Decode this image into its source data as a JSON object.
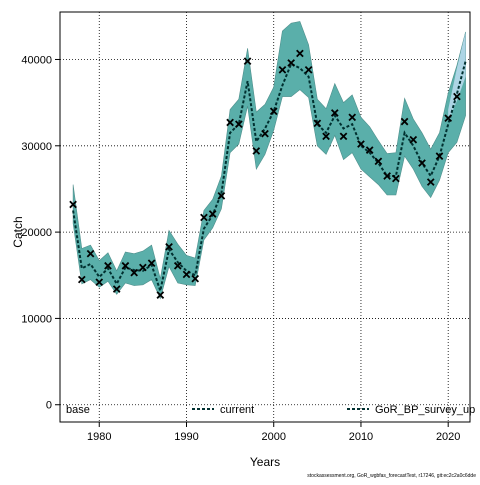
{
  "chart_data": {
    "type": "line",
    "xlabel": "Years",
    "ylabel": "Catch",
    "xlim": [
      1975.5,
      2022.5
    ],
    "ylim": [
      -2000,
      45500
    ],
    "x_ticks": [
      1980,
      1990,
      2000,
      2010,
      2020
    ],
    "y_ticks": [
      0,
      10000,
      20000,
      30000,
      40000
    ],
    "grid": true,
    "legend_placement": "bottom",
    "legend": {
      "left_label": "base",
      "mid_label": "current",
      "right_label": "GoR_BP_survey_up"
    },
    "footer": "stockassessment.org, GoR_wgbfas_forecastTest, r17246, git:ec2c2a0c6dde",
    "colors": {
      "band_main": "#5aafaa",
      "band_main_edge": "#4f8f8c",
      "band_extra": "#bcdcf0",
      "line": "#003030",
      "observed_marker": "#000000",
      "grid": "#000000"
    },
    "series": [
      {
        "name": "current",
        "x": [
          1977,
          1978,
          1979,
          1980,
          1981,
          1982,
          1983,
          1984,
          1985,
          1986,
          1987,
          1988,
          1989,
          1990,
          1991,
          1992,
          1993,
          1994,
          1995,
          1996,
          1997,
          1998,
          1999,
          2000,
          2001,
          2002,
          2003,
          2004,
          2005,
          2006,
          2007,
          2008,
          2009,
          2010,
          2011,
          2012,
          2013,
          2014,
          2015,
          2016,
          2017,
          2018,
          2019,
          2020,
          2021,
          2022
        ],
        "values": [
          22500,
          15800,
          16300,
          14800,
          15800,
          14000,
          15900,
          15600,
          15500,
          16200,
          13200,
          18000,
          16500,
          15500,
          15000,
          20400,
          22000,
          24500,
          31500,
          32500,
          37500,
          30500,
          32000,
          34000,
          37000,
          39500,
          39000,
          38000,
          32500,
          31500,
          33500,
          32000,
          32500,
          30000,
          29200,
          28000,
          26500,
          26500,
          31500,
          30000,
          28000,
          26500,
          28800,
          32500,
          36000,
          39800
        ],
        "lower": [
          21000,
          14000,
          14500,
          13600,
          14300,
          12800,
          14100,
          13800,
          13900,
          14500,
          12300,
          16000,
          14100,
          13900,
          13800,
          19100,
          20500,
          22700,
          29200,
          30200,
          34600,
          27300,
          29000,
          31800,
          35700,
          35700,
          36500,
          35600,
          30000,
          29000,
          31200,
          28400,
          29200,
          27300,
          26400,
          25500,
          24300,
          24300,
          28800,
          27300,
          25300,
          24000,
          26000,
          29200,
          30400,
          33500
        ],
        "upper": [
          25500,
          18100,
          18500,
          16700,
          17600,
          15500,
          17700,
          17500,
          17800,
          18500,
          14600,
          20200,
          18600,
          17300,
          17000,
          22500,
          23800,
          26500,
          34200,
          35400,
          41300,
          33900,
          34800,
          36800,
          43300,
          44200,
          44400,
          41700,
          35400,
          34300,
          37200,
          35000,
          35900,
          33300,
          32200,
          30600,
          29100,
          29200,
          35500,
          33100,
          31500,
          29600,
          31500,
          36100,
          39300,
          43200
        ]
      }
    ],
    "observed": {
      "name": "base",
      "marker": "x",
      "x": [
        1977,
        1978,
        1979,
        1980,
        1981,
        1982,
        1983,
        1984,
        1985,
        1986,
        1987,
        1988,
        1989,
        1990,
        1991,
        1992,
        1993,
        1994,
        1995,
        1996,
        1997,
        1998,
        1999,
        2000,
        2001,
        2002,
        2003,
        2004,
        2005,
        2006,
        2007,
        2008,
        2009,
        2010,
        2011,
        2012,
        2013,
        2014,
        2015,
        2016,
        2017,
        2018,
        2019,
        2020,
        2021,
        2022
      ],
      "values": [
        23200,
        14500,
        17500,
        14200,
        16100,
        13400,
        16100,
        15300,
        15900,
        16400,
        12700,
        18300,
        16100,
        15100,
        14600,
        21700,
        22100,
        24200,
        32700,
        32500,
        39800,
        29400,
        31400,
        34000,
        38800,
        39600,
        40700,
        38800,
        32600,
        31100,
        33800,
        31100,
        33300,
        30200,
        29500,
        28200,
        26500,
        26200,
        32800,
        30700,
        28000,
        25800,
        28800,
        33200,
        35700,
        null
      ]
    },
    "extra_band": {
      "x": [
        2020,
        2021,
        2022
      ],
      "lower": [
        32800,
        35200,
        38000
      ],
      "upper": [
        34200,
        39000,
        43200
      ]
    }
  }
}
